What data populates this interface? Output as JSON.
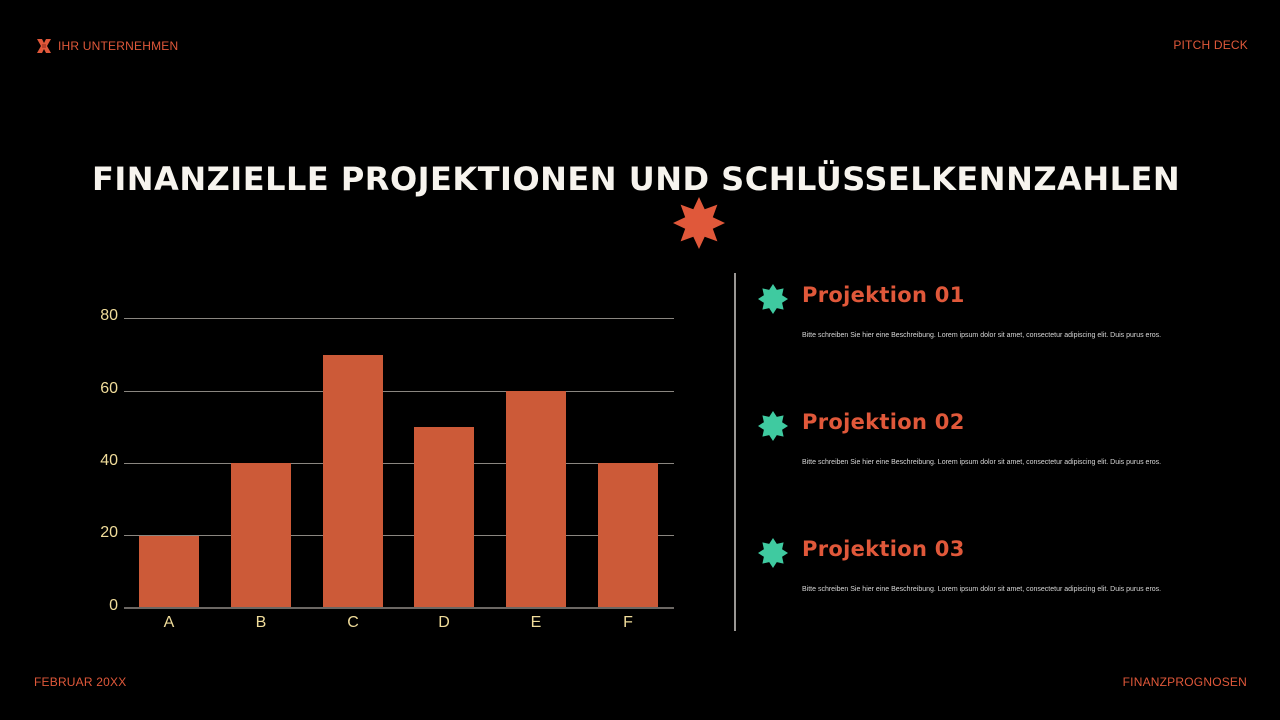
{
  "header": {
    "company": "IHR UNTERNEHMEN",
    "logo_icon": "x-logo-icon",
    "deck_label": "PITCH DECK"
  },
  "footer": {
    "date": "FEBRUAR 20XX",
    "section": "FINANZPROGNOSEN"
  },
  "slide": {
    "title": "FINANZIELLE PROJEKTIONEN UND SCHLÜSSELKENNZAHLEN",
    "decoration_icon": "starburst-icon"
  },
  "colors": {
    "background": "#000000",
    "accent": "#e0583a",
    "bar": "#cc5a38",
    "teal": "#3fcaa0",
    "tick_label": "#f0dc9a",
    "title": "#f7f4ee"
  },
  "chart_data": {
    "type": "bar",
    "title": "",
    "xlabel": "",
    "ylabel": "",
    "categories": [
      "A",
      "B",
      "C",
      "D",
      "E",
      "F"
    ],
    "values": [
      20,
      40,
      70,
      50,
      60,
      40
    ],
    "ylim": [
      0,
      80
    ],
    "yticks": [
      0,
      20,
      40,
      60,
      80
    ],
    "grid": true,
    "legend": "none"
  },
  "projections": [
    {
      "title": "Projektion 01",
      "description": "Bitte schreiben Sie hier eine Beschreibung. Lorem ipsum dolor sit amet, consectetur adipiscing elit. Duis purus eros."
    },
    {
      "title": "Projektion 02",
      "description": "Bitte schreiben Sie hier eine Beschreibung. Lorem ipsum dolor sit amet, consectetur adipiscing elit. Duis purus eros."
    },
    {
      "title": "Projektion 03",
      "description": "Bitte schreiben Sie hier eine Beschreibung. Lorem ipsum dolor sit amet, consectetur adipiscing elit. Duis purus eros."
    }
  ]
}
